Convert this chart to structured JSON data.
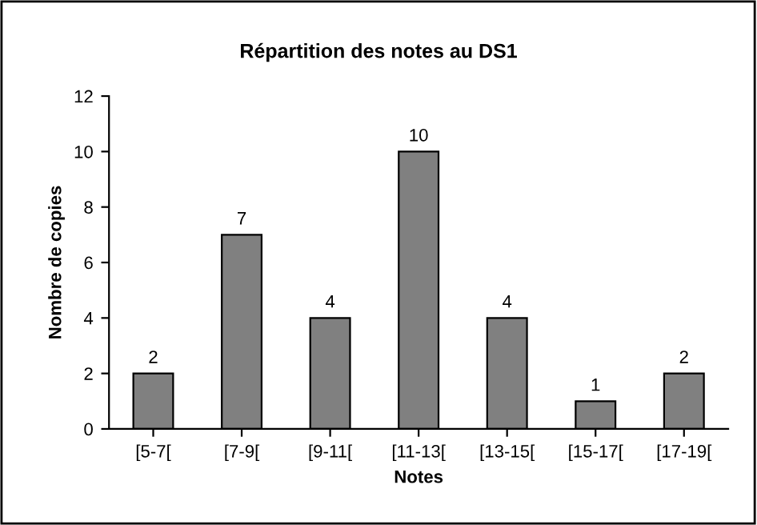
{
  "chart_data": {
    "type": "bar",
    "title": "Répartition des notes au DS1",
    "xlabel": "Notes",
    "ylabel": "Nombre de copies",
    "categories": [
      "[5-7[",
      "[7-9[",
      "[9-11[",
      "[11-13[",
      "[13-15[",
      "[15-17[",
      "[17-19["
    ],
    "values": [
      2,
      7,
      4,
      10,
      4,
      1,
      2
    ],
    "color": "#808080",
    "ylim": [
      0,
      12
    ],
    "yticks": [
      0,
      2,
      4,
      6,
      8,
      10,
      12
    ],
    "grid": false,
    "data_labels": true
  }
}
